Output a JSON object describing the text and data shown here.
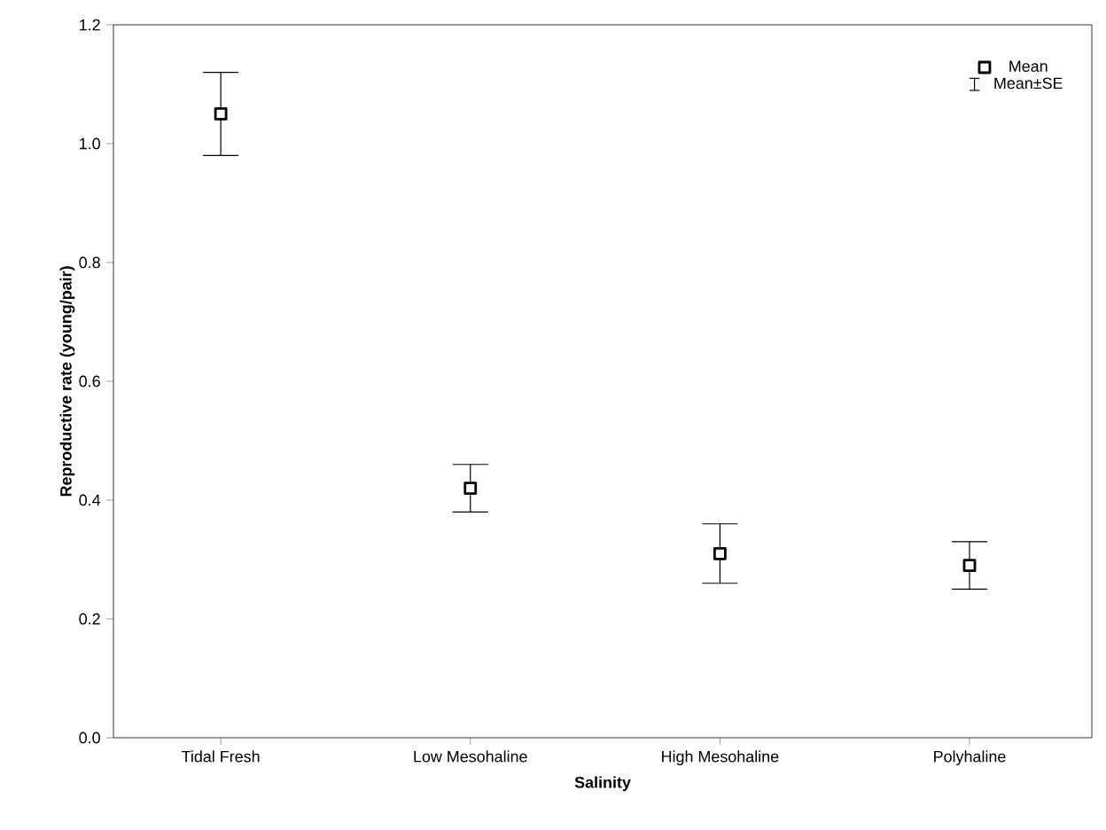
{
  "chart_data": {
    "type": "scatter",
    "xlabel": "Salinity",
    "ylabel": "Reproductive rate (young/pair)",
    "categories": [
      "Tidal Fresh",
      "Low Mesohaline",
      "High Mesohaline",
      "Polyhaline"
    ],
    "series": [
      {
        "name": "Mean",
        "color": "#000000",
        "values": [
          1.05,
          0.42,
          0.31,
          0.29
        ],
        "errors": [
          0.07,
          0.04,
          0.05,
          0.04
        ]
      }
    ],
    "annotations": [
      "Mean±SE"
    ],
    "ylim": [
      0,
      1.2
    ],
    "yticks": [
      {
        "value": 0,
        "label": "0.0"
      },
      {
        "value": 0.2,
        "label": "0.2"
      },
      {
        "value": 0.4,
        "label": "0.4"
      },
      {
        "value": 0.6,
        "label": "0.6"
      },
      {
        "value": 0.8,
        "label": "0.8"
      },
      {
        "value": 1.0,
        "label": "1.0"
      },
      {
        "value": 1.2,
        "label": "1.2"
      }
    ],
    "grid": false,
    "legend": "top right",
    "marker": "square"
  }
}
